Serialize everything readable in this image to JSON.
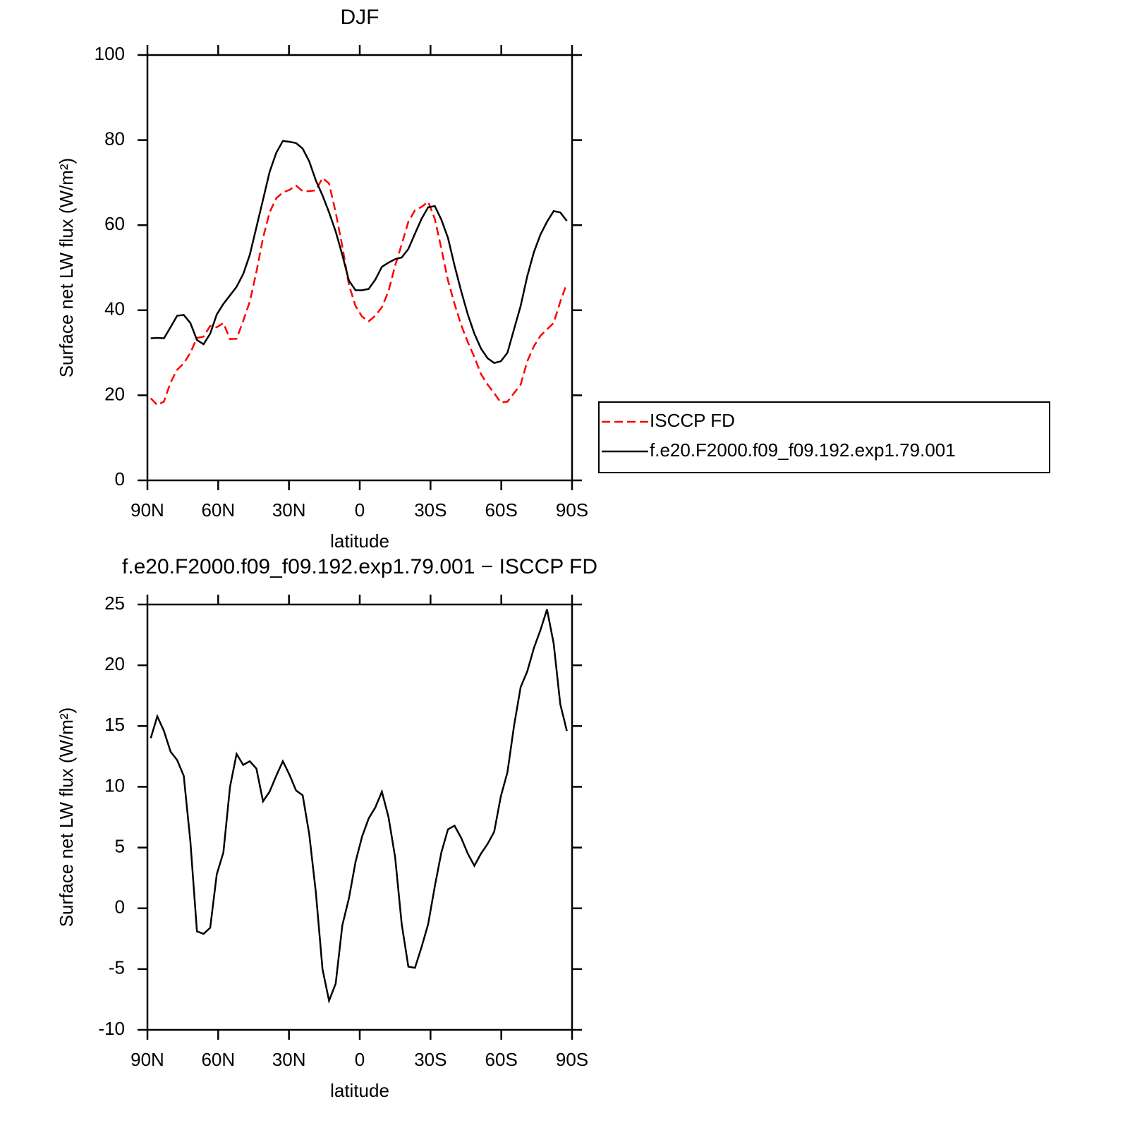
{
  "chart_data": [
    {
      "type": "line",
      "title": "DJF",
      "xlabel": "latitude",
      "ylabel": "Surface net LW flux (W/m²)",
      "x": [
        88.6,
        85.8,
        83,
        80.2,
        77.4,
        74.6,
        71.8,
        69,
        66.2,
        63.4,
        60.6,
        57.8,
        55,
        52.2,
        49.4,
        46.6,
        43.8,
        41,
        38.2,
        35.4,
        32.6,
        29.8,
        27,
        24.2,
        21.4,
        18.6,
        15.8,
        13,
        10.2,
        7.4,
        4.6,
        1.8,
        -1,
        -3.8,
        -6.6,
        -9.4,
        -12.2,
        -15,
        -17.8,
        -20.6,
        -23.4,
        -26.2,
        -29,
        -31.8,
        -34.6,
        -37.4,
        -40.2,
        -43,
        -45.8,
        -48.6,
        -51.4,
        -54.2,
        -57,
        -59.8,
        -62.6,
        -65.4,
        -68.2,
        -71,
        -73.8,
        -76.6,
        -79.4,
        -82.2,
        -85,
        -87.8
      ],
      "series": [
        {
          "name": "ISCCP FD",
          "color": "#ff0000",
          "dashed": true,
          "values": [
            19.3,
            17.7,
            18.5,
            23,
            26,
            27.5,
            30,
            33.5,
            33.8,
            36.3,
            36,
            37,
            33.2,
            33.3,
            37.5,
            42,
            49,
            57,
            63,
            66.3,
            67.7,
            68.3,
            69.3,
            68,
            68,
            68.2,
            71.1,
            69.8,
            63,
            55,
            46,
            41,
            38.5,
            37.4,
            38.7,
            40.7,
            44.5,
            50.5,
            55.5,
            60.8,
            63.5,
            64.3,
            65.5,
            61.5,
            54.5,
            47,
            41.5,
            36.5,
            32.5,
            29,
            25,
            22.5,
            20.5,
            18.3,
            18.5,
            20.5,
            22.5,
            28,
            31.5,
            34,
            35.5,
            37,
            42,
            46.3
          ]
        },
        {
          "name": "f.e20.F2000.f09_f09.192.exp1.79.001",
          "color": "#000000",
          "dashed": false,
          "values": [
            33.4,
            33.5,
            33.4,
            36,
            38.7,
            38.9,
            37,
            33,
            32,
            34.5,
            39,
            41.5,
            43.5,
            45.5,
            48.5,
            53,
            59.5,
            66,
            72.5,
            77,
            79.8,
            79.6,
            79.3,
            78,
            75,
            70.5,
            67,
            63,
            58.5,
            53,
            47,
            44.7,
            44.7,
            45,
            47.2,
            50.2,
            51.2,
            52,
            52.4,
            54.4,
            58,
            61.5,
            64.2,
            64.5,
            61.3,
            57,
            50.5,
            44.5,
            39,
            34.5,
            31,
            28.7,
            27.6,
            28,
            30,
            35.5,
            41,
            48,
            53.6,
            57.8,
            60.8,
            63.3,
            63,
            61
          ]
        }
      ],
      "xlim": [
        90,
        -90
      ],
      "xticks": [
        {
          "value": 90,
          "label": "90N"
        },
        {
          "value": 60,
          "label": "60N"
        },
        {
          "value": 30,
          "label": "30N"
        },
        0,
        {
          "value": -30,
          "label": "30S"
        },
        {
          "value": -60,
          "label": "60S"
        },
        {
          "value": -90,
          "label": "90S"
        }
      ],
      "ylim": [
        0,
        100
      ],
      "yticks": [
        0,
        20,
        40,
        60,
        80,
        100
      ],
      "legend": "right"
    },
    {
      "type": "line",
      "title": "f.e20.F2000.f09_f09.192.exp1.79.001 − ISCCP FD",
      "xlabel": "latitude",
      "ylabel": "Surface net LW flux (W/m²)",
      "x": [
        88.6,
        85.8,
        83,
        80.2,
        77.4,
        74.6,
        71.8,
        69,
        66.2,
        63.4,
        60.6,
        57.8,
        55,
        52.2,
        49.4,
        46.6,
        43.8,
        41,
        38.2,
        35.4,
        32.6,
        29.8,
        27,
        24.2,
        21.4,
        18.6,
        15.8,
        13,
        10.2,
        7.4,
        4.6,
        1.8,
        -1,
        -3.8,
        -6.6,
        -9.4,
        -12.2,
        -15,
        -17.8,
        -20.6,
        -23.4,
        -26.2,
        -29,
        -31.8,
        -34.6,
        -37.4,
        -40.2,
        -43,
        -45.8,
        -48.6,
        -51.4,
        -54.2,
        -57,
        -59.8,
        -62.6,
        -65.4,
        -68.2,
        -71,
        -73.8,
        -76.6,
        -79.4,
        -82.2,
        -85,
        -87.8
      ],
      "series": [
        {
          "color": "#000000",
          "dashed": false,
          "values": [
            14,
            15.8,
            14.6,
            12.9,
            12.2,
            10.9,
            5.5,
            -1.9,
            -2.1,
            -1.6,
            2.8,
            4.6,
            10,
            12.7,
            11.8,
            12.1,
            11.5,
            8.8,
            9.6,
            10.9,
            12.1,
            11,
            9.7,
            9.3,
            6.1,
            1.3,
            -5,
            -7.6,
            -6.2,
            -1.4,
            0.8,
            3.8,
            5.9,
            7.4,
            8.3,
            9.6,
            7.5,
            4.2,
            -1.3,
            -4.8,
            -4.9,
            -3.2,
            -1.3,
            1.8,
            4.6,
            6.5,
            6.8,
            5.8,
            4.5,
            3.5,
            4.5,
            5.3,
            6.3,
            9.2,
            11.2,
            15,
            18.2,
            19.5,
            21.4,
            22.9,
            24.6,
            21.8,
            16.8,
            14.6
          ]
        }
      ],
      "xlim": [
        90,
        -90
      ],
      "xticks": [
        {
          "value": 90,
          "label": "90N"
        },
        {
          "value": 60,
          "label": "60N"
        },
        {
          "value": 30,
          "label": "30N"
        },
        0,
        {
          "value": -30,
          "label": "30S"
        },
        {
          "value": -60,
          "label": "60S"
        },
        {
          "value": -90,
          "label": "90S"
        }
      ],
      "ylim": [
        -10,
        25
      ],
      "yticks": [
        -10,
        -5,
        0,
        5,
        10,
        15,
        20,
        25
      ]
    }
  ]
}
